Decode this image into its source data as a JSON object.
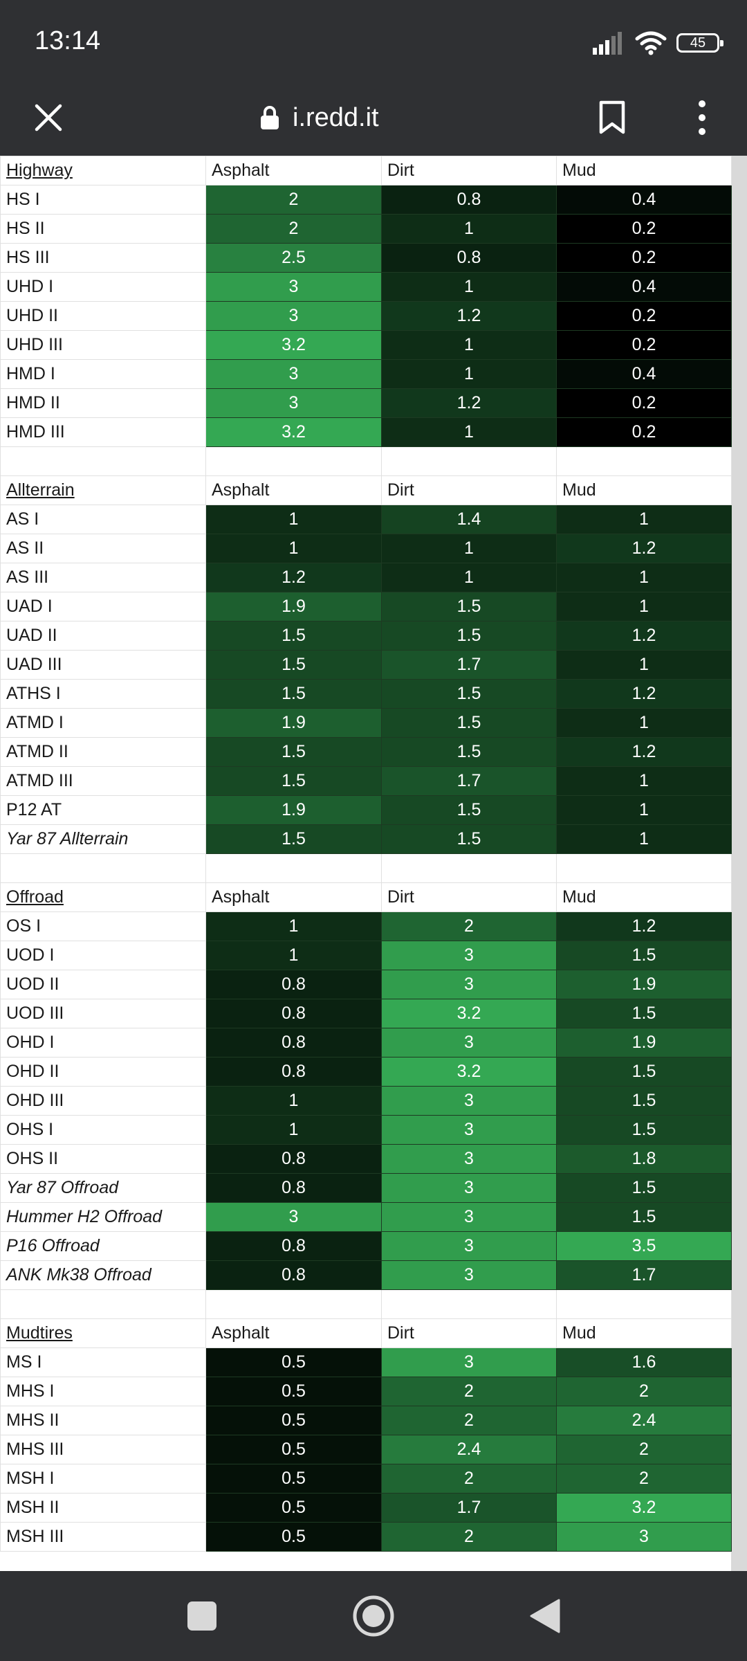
{
  "status_bar": {
    "time": "13:14",
    "battery": "45"
  },
  "browser": {
    "url": "i.redd.it"
  },
  "icons": {
    "signal": "signal-icon",
    "wifi": "wifi-icon",
    "battery": "battery-icon",
    "close": "close-icon",
    "lock": "lock-icon",
    "bookmark": "bookmark-icon",
    "menu": "kebab-menu-icon",
    "recents": "square-icon",
    "home": "circle-icon",
    "back": "triangle-back-icon"
  },
  "colors": {
    "low": "#000000",
    "high": "#34a853"
  },
  "sections": [
    {
      "title": "Highway",
      "columns": [
        "Asphalt",
        "Dirt",
        "Mud"
      ],
      "rows": [
        {
          "name": "HS I",
          "values": [
            "2",
            "0.8",
            "0.4"
          ]
        },
        {
          "name": "HS II",
          "values": [
            "2",
            "1",
            "0.2"
          ]
        },
        {
          "name": "HS III",
          "values": [
            "2.5",
            "0.8",
            "0.2"
          ]
        },
        {
          "name": "UHD I",
          "values": [
            "3",
            "1",
            "0.4"
          ]
        },
        {
          "name": "UHD II",
          "values": [
            "3",
            "1.2",
            "0.2"
          ]
        },
        {
          "name": "UHD III",
          "values": [
            "3.2",
            "1",
            "0.2"
          ]
        },
        {
          "name": "HMD I",
          "values": [
            "3",
            "1",
            "0.4"
          ]
        },
        {
          "name": "HMD II",
          "values": [
            "3",
            "1.2",
            "0.2"
          ]
        },
        {
          "name": "HMD III",
          "values": [
            "3.2",
            "1",
            "0.2"
          ]
        }
      ]
    },
    {
      "title": "Allterrain",
      "columns": [
        "Asphalt",
        "Dirt",
        "Mud"
      ],
      "rows": [
        {
          "name": "AS I",
          "values": [
            "1",
            "1.4",
            "1"
          ]
        },
        {
          "name": "AS II",
          "values": [
            "1",
            "1",
            "1.2"
          ]
        },
        {
          "name": "AS III",
          "values": [
            "1.2",
            "1",
            "1"
          ]
        },
        {
          "name": "UAD I",
          "values": [
            "1.9",
            "1.5",
            "1"
          ]
        },
        {
          "name": "UAD II",
          "values": [
            "1.5",
            "1.5",
            "1.2"
          ]
        },
        {
          "name": "UAD III",
          "values": [
            "1.5",
            "1.7",
            "1"
          ]
        },
        {
          "name": "ATHS I",
          "values": [
            "1.5",
            "1.5",
            "1.2"
          ]
        },
        {
          "name": "ATMD I",
          "values": [
            "1.9",
            "1.5",
            "1"
          ]
        },
        {
          "name": "ATMD II",
          "values": [
            "1.5",
            "1.5",
            "1.2"
          ]
        },
        {
          "name": "ATMD III",
          "values": [
            "1.5",
            "1.7",
            "1"
          ]
        },
        {
          "name": "P12 AT",
          "values": [
            "1.9",
            "1.5",
            "1"
          ]
        },
        {
          "name": "Yar 87 Allterrain",
          "italic": true,
          "values": [
            "1.5",
            "1.5",
            "1"
          ]
        }
      ]
    },
    {
      "title": "Offroad",
      "columns": [
        "Asphalt",
        "Dirt",
        "Mud"
      ],
      "rows": [
        {
          "name": "OS I",
          "values": [
            "1",
            "2",
            "1.2"
          ]
        },
        {
          "name": "UOD I",
          "values": [
            "1",
            "3",
            "1.5"
          ]
        },
        {
          "name": "UOD II",
          "values": [
            "0.8",
            "3",
            "1.9"
          ]
        },
        {
          "name": "UOD III",
          "values": [
            "0.8",
            "3.2",
            "1.5"
          ]
        },
        {
          "name": "OHD I",
          "values": [
            "0.8",
            "3",
            "1.9"
          ]
        },
        {
          "name": "OHD II",
          "values": [
            "0.8",
            "3.2",
            "1.5"
          ]
        },
        {
          "name": "OHD III",
          "values": [
            "1",
            "3",
            "1.5"
          ]
        },
        {
          "name": "OHS I",
          "values": [
            "1",
            "3",
            "1.5"
          ]
        },
        {
          "name": "OHS II",
          "values": [
            "0.8",
            "3",
            "1.8"
          ]
        },
        {
          "name": "Yar 87 Offroad",
          "italic": true,
          "values": [
            "0.8",
            "3",
            "1.5"
          ]
        },
        {
          "name": "Hummer H2 Offroad",
          "italic": true,
          "values": [
            "3",
            "3",
            "1.5"
          ]
        },
        {
          "name": "P16 Offroad",
          "italic": true,
          "values": [
            "0.8",
            "3",
            "3.5"
          ]
        },
        {
          "name": "ANK Mk38 Offroad",
          "italic": true,
          "values": [
            "0.8",
            "3",
            "1.7"
          ]
        }
      ]
    },
    {
      "title": "Mudtires",
      "columns": [
        "Asphalt",
        "Dirt",
        "Mud"
      ],
      "rows": [
        {
          "name": "MS I",
          "values": [
            "0.5",
            "3",
            "1.6"
          ]
        },
        {
          "name": "MHS I",
          "values": [
            "0.5",
            "2",
            "2"
          ]
        },
        {
          "name": "MHS II",
          "values": [
            "0.5",
            "2",
            "2.4"
          ]
        },
        {
          "name": "MHS III",
          "values": [
            "0.5",
            "2.4",
            "2"
          ]
        },
        {
          "name": "MSH I",
          "values": [
            "0.5",
            "2",
            "2"
          ]
        },
        {
          "name": "MSH II",
          "values": [
            "0.5",
            "1.7",
            "3.2"
          ]
        },
        {
          "name": "MSH III",
          "values": [
            "0.5",
            "2",
            "3"
          ]
        }
      ]
    }
  ]
}
